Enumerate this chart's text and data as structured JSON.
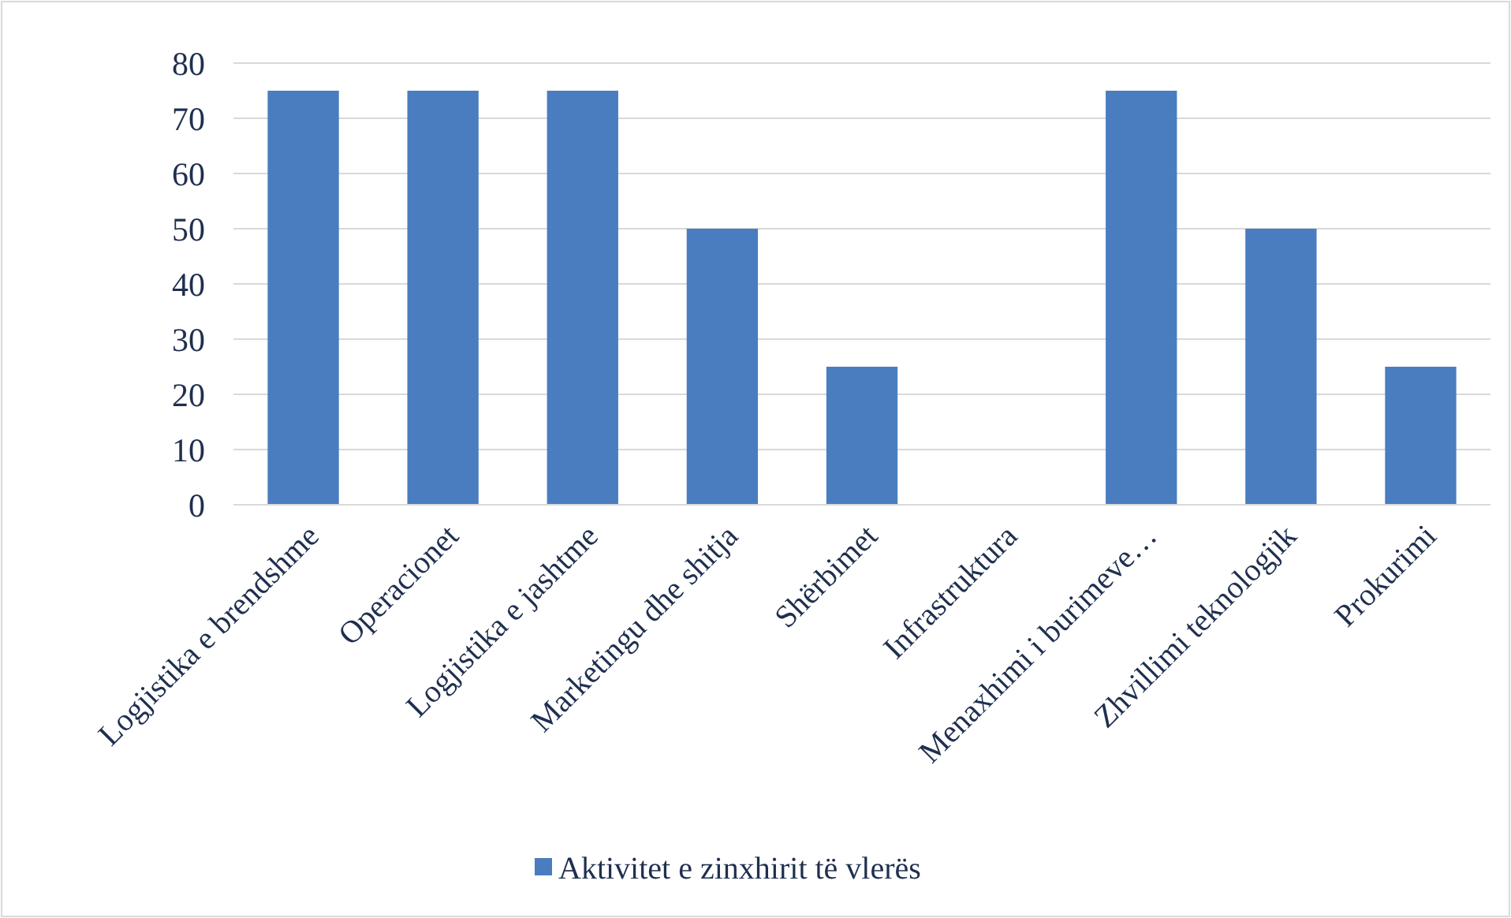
{
  "chart_data": {
    "type": "bar",
    "categories": [
      "Logjistika e brendshme",
      "Operacionet",
      "Logjistika e jashtme",
      "Marketingu dhe shitja",
      "Shërbimet",
      "Infrastruktura",
      "Menaxhimi i burimeve…",
      "Zhvillimi teknologjik",
      "Prokurimi"
    ],
    "series": [
      {
        "name": "Aktivitet e zinxhirit të vlerës",
        "color": "#4a7dc0",
        "values": [
          75,
          75,
          75,
          50,
          25,
          0,
          75,
          50,
          25
        ]
      }
    ],
    "ylim": [
      0,
      80
    ],
    "yticks": [
      0,
      10,
      20,
      30,
      40,
      50,
      60,
      70,
      80
    ],
    "grid": "y",
    "legend": "bottom"
  }
}
